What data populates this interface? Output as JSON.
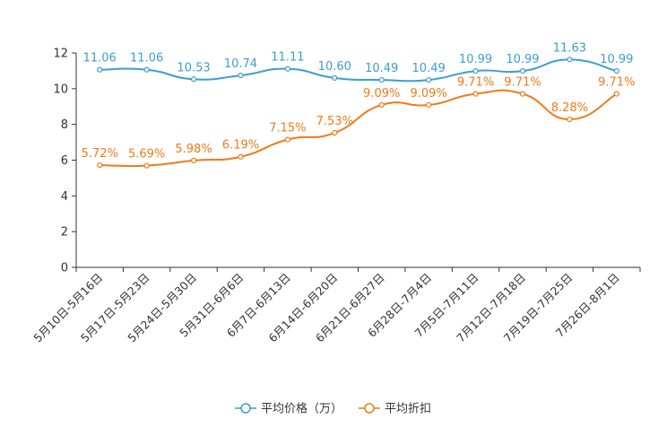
{
  "chart_data": {
    "type": "line",
    "title": "",
    "xlabel": "",
    "ylabel": "",
    "ylim": [
      0,
      12
    ],
    "yticks": [
      0,
      2,
      4,
      6,
      8,
      10,
      12
    ],
    "grid": false,
    "legend_position": "bottom-center",
    "categories": [
      "5月10日-5月16日",
      "5月17日-5月23日",
      "5月24日-5月30日",
      "5月31日-6月6日",
      "6月7日-6月13日",
      "6月14日-6月20日",
      "6月21日-6月27日",
      "6月28日-7月4日",
      "7月5日-7月11日",
      "7月12日-7月18日",
      "7月19日-7月25日",
      "7月26日-8月1日"
    ],
    "series": [
      {
        "name": "平均价格（万）",
        "color": "#3a9fd1",
        "values": [
          11.06,
          11.06,
          10.53,
          10.74,
          11.11,
          10.6,
          10.49,
          10.49,
          10.99,
          10.99,
          11.63,
          10.99
        ],
        "labels": [
          "11.06",
          "11.06",
          "10.53",
          "10.74",
          "11.11",
          "10.60",
          "10.49",
          "10.49",
          "10.99",
          "10.99",
          "11.63",
          "10.99"
        ]
      },
      {
        "name": "平均折扣",
        "color": "#f07a1a",
        "values": [
          5.72,
          5.69,
          5.98,
          6.19,
          7.15,
          7.53,
          9.09,
          9.09,
          9.71,
          9.71,
          8.28,
          9.71
        ],
        "labels": [
          "5.72%",
          "5.69%",
          "5.98%",
          "6.19%",
          "7.15%",
          "7.53%",
          "9.09%",
          "9.09%",
          "9.71%",
          "9.71%",
          "8.28%",
          "9.71%"
        ]
      }
    ]
  }
}
